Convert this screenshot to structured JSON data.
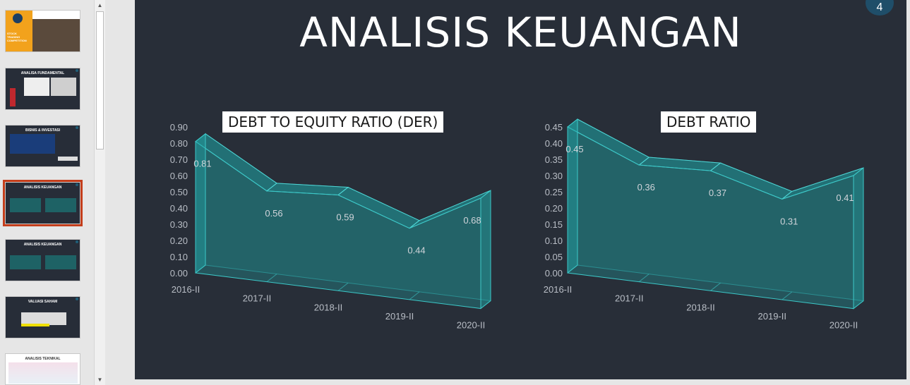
{
  "slide_pane": {
    "thumbnails": [
      {
        "title": "STOCK TRADING COMPETITION"
      },
      {
        "title": "ANALISA FUNDAMENTAL"
      },
      {
        "title": "BISNIS & INVESTASI"
      },
      {
        "title": "ANALISIS KEUANGAN"
      },
      {
        "title": "ANALISIS KEUANGAN"
      },
      {
        "title": "VALUASI SAHAM"
      },
      {
        "title": "ANALISIS TEKNIKAL"
      }
    ]
  },
  "slide": {
    "title": "ANALISIS KEUANGAN",
    "page_number": "4"
  },
  "chart_data": [
    {
      "type": "area",
      "title": "DEBT TO EQUITY RATIO (DER)",
      "categories": [
        "2016-II",
        "2017-II",
        "2018-II",
        "2019-II",
        "2020-II"
      ],
      "values": [
        0.81,
        0.56,
        0.59,
        0.44,
        0.68
      ],
      "data_labels": [
        "0.81",
        "0.56",
        "0.59",
        "0.44",
        "0.68"
      ],
      "y_ticks": [
        "0.00",
        "0.10",
        "0.20",
        "0.30",
        "0.40",
        "0.50",
        "0.60",
        "0.70",
        "0.80",
        "0.90"
      ],
      "ylim": [
        0,
        0.9
      ],
      "color": "#1fa8a8"
    },
    {
      "type": "area",
      "title": "DEBT RATIO",
      "categories": [
        "2016-II",
        "2017-II",
        "2018-II",
        "2019-II",
        "2020-II"
      ],
      "values": [
        0.45,
        0.36,
        0.37,
        0.31,
        0.41
      ],
      "data_labels": [
        "0.45",
        "0.36",
        "0.37",
        "0.31",
        "0.41"
      ],
      "y_ticks": [
        "0.00",
        "0.05",
        "0.10",
        "0.15",
        "0.20",
        "0.25",
        "0.30",
        "0.35",
        "0.40",
        "0.45"
      ],
      "ylim": [
        0,
        0.45
      ],
      "color": "#1fa8a8"
    }
  ]
}
